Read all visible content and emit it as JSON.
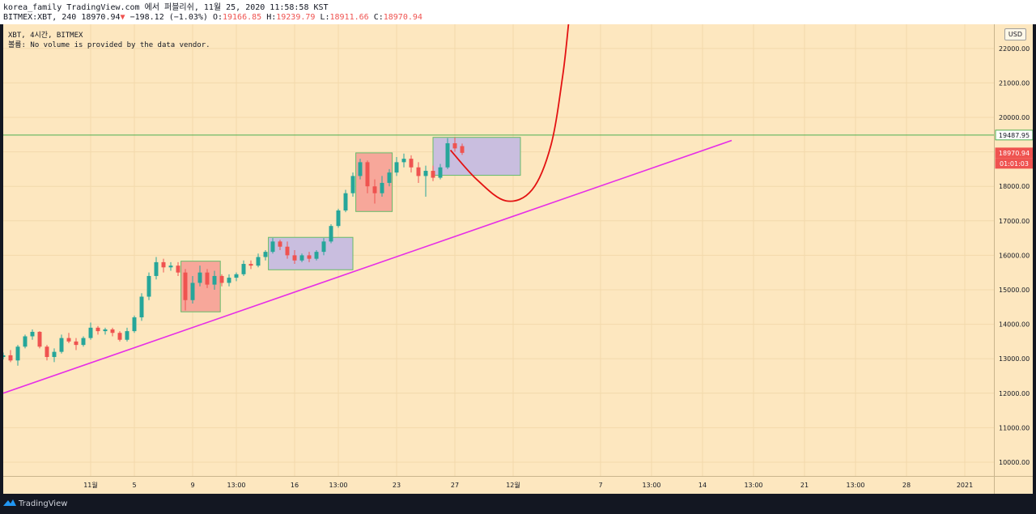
{
  "header": {
    "line1": "korea_family TradingView.com 에서 퍼블리쉬, 11월 25, 2020 11:58:58 KST",
    "symbol": "BITMEX:XBT, 240",
    "price": "18970.94",
    "arrow": "▼",
    "change": "−198.12 (−1.03%)",
    "o_label": "O:",
    "o_value": "19166.85",
    "h_label": "H:",
    "h_value": "19239.79",
    "l_label": "L:",
    "l_value": "18911.66",
    "c_label": "C:",
    "c_value": "18970.94"
  },
  "legend": {
    "line1": "XBT, 4시간, BITMEX",
    "line2": "볼륨: No volume is provided by the data vendor."
  },
  "currency": "USD",
  "footer": {
    "brand": "TradingView"
  },
  "colors": {
    "background": "#fde7bf",
    "up": "#26a69a",
    "down": "#ef5350",
    "trendline": "#e62ee6",
    "projection": "#e31212",
    "level_line": "#4caf50",
    "box_red": "#f7a79a",
    "box_purple": "#c9bedf"
  },
  "chart_data": {
    "type": "candlestick",
    "ylim": [
      9600,
      22700
    ],
    "y_ticks": [
      10000,
      11000,
      12000,
      13000,
      14000,
      15000,
      16000,
      17000,
      18000,
      19000,
      20000,
      21000,
      22000
    ],
    "y_tick_labels": [
      "10000.00",
      "11000.00",
      "12000.00",
      "13000.00",
      "14000.00",
      "15000.00",
      "16000.00",
      "17000.00",
      "18000.00",
      "19000.00",
      "20000.00",
      "21000.00",
      "22000.00"
    ],
    "x_ticks": [
      {
        "label": "11월",
        "t": 2
      },
      {
        "label": "5",
        "t": 5
      },
      {
        "label": "9",
        "t": 9
      },
      {
        "label": "13:00",
        "t": 12
      },
      {
        "label": "16",
        "t": 16
      },
      {
        "label": "13:00",
        "t": 19
      },
      {
        "label": "23",
        "t": 23
      },
      {
        "label": "27",
        "t": 27
      },
      {
        "label": "12월",
        "t": 31
      },
      {
        "label": "7",
        "t": 37
      },
      {
        "label": "13:00",
        "t": 40.5
      },
      {
        "label": "14",
        "t": 44
      },
      {
        "label": "13:00",
        "t": 47.5
      },
      {
        "label": "21",
        "t": 51
      },
      {
        "label": "13:00",
        "t": 54.5
      },
      {
        "label": "28",
        "t": 58
      },
      {
        "label": "2021",
        "t": 62
      }
    ],
    "price_labels": [
      {
        "value": 19487.95,
        "label": "19487.95",
        "style": "level"
      },
      {
        "value": 18970.94,
        "label": "18970.94",
        "style": "current"
      },
      {
        "value": 18800,
        "label": "01:01:03",
        "style": "countdown"
      }
    ],
    "level_line": 19487.95,
    "trendline": [
      {
        "t": -4,
        "v": 12000
      },
      {
        "t": 46,
        "v": 19330
      }
    ],
    "boxes": [
      {
        "t0": 8.2,
        "t1": 10.9,
        "v0": 14360,
        "v1": 15830,
        "color": "red"
      },
      {
        "t0": 14.2,
        "t1": 20.0,
        "v0": 15580,
        "v1": 16520,
        "color": "purple"
      },
      {
        "t0": 20.2,
        "t1": 22.7,
        "v0": 17270,
        "v1": 18970,
        "color": "red"
      },
      {
        "t0": 25.5,
        "t1": 31.5,
        "v0": 18320,
        "v1": 19420,
        "color": "purple"
      }
    ],
    "projection": [
      {
        "t": 26.7,
        "v": 19050
      },
      {
        "t": 28.5,
        "v": 18200
      },
      {
        "t": 30.5,
        "v": 17580
      },
      {
        "t": 32.3,
        "v": 17900
      },
      {
        "t": 33.6,
        "v": 19200
      },
      {
        "t": 34.4,
        "v": 21200
      },
      {
        "t": 34.8,
        "v": 22700
      }
    ],
    "candles": [
      {
        "t": -4.0,
        "o": 13050,
        "h": 13180,
        "l": 12980,
        "c": 13100
      },
      {
        "t": -3.5,
        "o": 13100,
        "h": 13250,
        "l": 12900,
        "c": 12950
      },
      {
        "t": -3.0,
        "o": 12950,
        "h": 13400,
        "l": 12800,
        "c": 13350
      },
      {
        "t": -2.5,
        "o": 13350,
        "h": 13700,
        "l": 13300,
        "c": 13650
      },
      {
        "t": -2.0,
        "o": 13650,
        "h": 13850,
        "l": 13550,
        "c": 13780
      },
      {
        "t": -1.5,
        "o": 13780,
        "h": 13800,
        "l": 13300,
        "c": 13350
      },
      {
        "t": -1.0,
        "o": 13350,
        "h": 13400,
        "l": 12950,
        "c": 13050
      },
      {
        "t": -0.5,
        "o": 13050,
        "h": 13300,
        "l": 12900,
        "c": 13200
      },
      {
        "t": 0.0,
        "o": 13200,
        "h": 13700,
        "l": 13150,
        "c": 13600
      },
      {
        "t": 0.5,
        "o": 13600,
        "h": 13750,
        "l": 13450,
        "c": 13500
      },
      {
        "t": 1.0,
        "o": 13500,
        "h": 13600,
        "l": 13250,
        "c": 13400
      },
      {
        "t": 1.5,
        "o": 13400,
        "h": 13650,
        "l": 13350,
        "c": 13600
      },
      {
        "t": 2.0,
        "o": 13600,
        "h": 14050,
        "l": 13550,
        "c": 13900
      },
      {
        "t": 2.5,
        "o": 13900,
        "h": 13950,
        "l": 13700,
        "c": 13800
      },
      {
        "t": 3.0,
        "o": 13800,
        "h": 13900,
        "l": 13700,
        "c": 13850
      },
      {
        "t": 3.5,
        "o": 13850,
        "h": 13900,
        "l": 13650,
        "c": 13750
      },
      {
        "t": 4.0,
        "o": 13750,
        "h": 13800,
        "l": 13500,
        "c": 13550
      },
      {
        "t": 4.5,
        "o": 13550,
        "h": 13900,
        "l": 13500,
        "c": 13800
      },
      {
        "t": 5.0,
        "o": 13800,
        "h": 14250,
        "l": 13750,
        "c": 14200
      },
      {
        "t": 5.5,
        "o": 14200,
        "h": 14900,
        "l": 14100,
        "c": 14800
      },
      {
        "t": 6.0,
        "o": 14800,
        "h": 15500,
        "l": 14700,
        "c": 15400
      },
      {
        "t": 6.5,
        "o": 15400,
        "h": 15950,
        "l": 15300,
        "c": 15800
      },
      {
        "t": 7.0,
        "o": 15800,
        "h": 15900,
        "l": 15500,
        "c": 15650
      },
      {
        "t": 7.5,
        "o": 15650,
        "h": 15800,
        "l": 15550,
        "c": 15700
      },
      {
        "t": 8.0,
        "o": 15700,
        "h": 15800,
        "l": 15400,
        "c": 15500
      },
      {
        "t": 8.5,
        "o": 15500,
        "h": 15600,
        "l": 14400,
        "c": 14700
      },
      {
        "t": 9.0,
        "o": 14700,
        "h": 15400,
        "l": 14600,
        "c": 15200
      },
      {
        "t": 9.5,
        "o": 15200,
        "h": 15700,
        "l": 15100,
        "c": 15500
      },
      {
        "t": 10.0,
        "o": 15500,
        "h": 15600,
        "l": 15050,
        "c": 15150
      },
      {
        "t": 10.5,
        "o": 15150,
        "h": 15550,
        "l": 15000,
        "c": 15400
      },
      {
        "t": 11.0,
        "o": 15400,
        "h": 15450,
        "l": 15100,
        "c": 15200
      },
      {
        "t": 11.5,
        "o": 15200,
        "h": 15450,
        "l": 15100,
        "c": 15350
      },
      {
        "t": 12.0,
        "o": 15350,
        "h": 15500,
        "l": 15250,
        "c": 15450
      },
      {
        "t": 12.5,
        "o": 15450,
        "h": 15850,
        "l": 15400,
        "c": 15750
      },
      {
        "t": 13.0,
        "o": 15750,
        "h": 15850,
        "l": 15600,
        "c": 15700
      },
      {
        "t": 13.5,
        "o": 15700,
        "h": 16050,
        "l": 15650,
        "c": 15950
      },
      {
        "t": 14.0,
        "o": 15950,
        "h": 16150,
        "l": 15850,
        "c": 16100
      },
      {
        "t": 14.5,
        "o": 16100,
        "h": 16500,
        "l": 16050,
        "c": 16400
      },
      {
        "t": 15.0,
        "o": 16400,
        "h": 16450,
        "l": 16150,
        "c": 16250
      },
      {
        "t": 15.5,
        "o": 16250,
        "h": 16400,
        "l": 15900,
        "c": 16000
      },
      {
        "t": 16.0,
        "o": 16000,
        "h": 16150,
        "l": 15750,
        "c": 15850
      },
      {
        "t": 16.5,
        "o": 15850,
        "h": 16050,
        "l": 15800,
        "c": 16000
      },
      {
        "t": 17.0,
        "o": 16000,
        "h": 16100,
        "l": 15800,
        "c": 15900
      },
      {
        "t": 17.5,
        "o": 15900,
        "h": 16150,
        "l": 15850,
        "c": 16100
      },
      {
        "t": 18.0,
        "o": 16100,
        "h": 16500,
        "l": 16000,
        "c": 16400
      },
      {
        "t": 18.5,
        "o": 16400,
        "h": 16900,
        "l": 16350,
        "c": 16850
      },
      {
        "t": 19.0,
        "o": 16850,
        "h": 17350,
        "l": 16800,
        "c": 17300
      },
      {
        "t": 19.5,
        "o": 17300,
        "h": 17900,
        "l": 17250,
        "c": 17800
      },
      {
        "t": 20.0,
        "o": 17800,
        "h": 18400,
        "l": 17700,
        "c": 18300
      },
      {
        "t": 20.5,
        "o": 18300,
        "h": 18800,
        "l": 18200,
        "c": 18700
      },
      {
        "t": 21.0,
        "o": 18700,
        "h": 18750,
        "l": 17800,
        "c": 18000
      },
      {
        "t": 21.5,
        "o": 18000,
        "h": 18200,
        "l": 17500,
        "c": 17800
      },
      {
        "t": 22.0,
        "o": 17800,
        "h": 18300,
        "l": 17700,
        "c": 18100
      },
      {
        "t": 22.5,
        "o": 18100,
        "h": 18500,
        "l": 18000,
        "c": 18400
      },
      {
        "t": 23.0,
        "o": 18400,
        "h": 18850,
        "l": 18300,
        "c": 18700
      },
      {
        "t": 23.5,
        "o": 18700,
        "h": 18950,
        "l": 18550,
        "c": 18800
      },
      {
        "t": 24.0,
        "o": 18800,
        "h": 18900,
        "l": 18400,
        "c": 18550
      },
      {
        "t": 24.5,
        "o": 18550,
        "h": 18700,
        "l": 18100,
        "c": 18300
      },
      {
        "t": 25.0,
        "o": 18300,
        "h": 18600,
        "l": 17700,
        "c": 18450
      },
      {
        "t": 25.5,
        "o": 18450,
        "h": 18600,
        "l": 18150,
        "c": 18250
      },
      {
        "t": 26.0,
        "o": 18250,
        "h": 18650,
        "l": 18200,
        "c": 18550
      },
      {
        "t": 26.5,
        "o": 18550,
        "h": 19400,
        "l": 18500,
        "c": 19250
      },
      {
        "t": 27.0,
        "o": 19250,
        "h": 19420,
        "l": 19000,
        "c": 19100
      },
      {
        "t": 27.5,
        "o": 19166.85,
        "h": 19239.79,
        "l": 18911.66,
        "c": 18970.94
      }
    ]
  }
}
